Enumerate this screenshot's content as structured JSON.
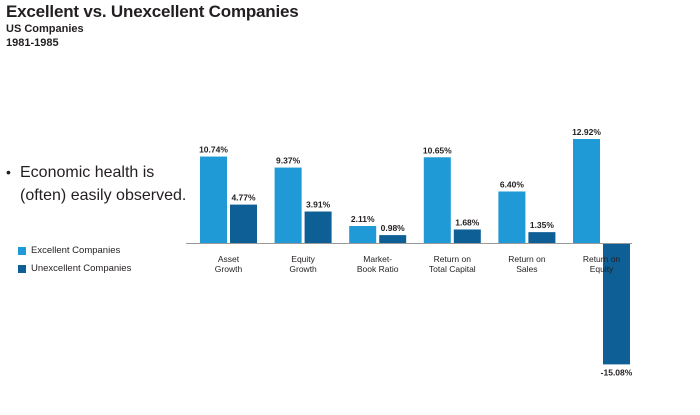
{
  "title": "Excellent vs. Unexcellent Companies",
  "subtitle": "US Companies",
  "period": "1981-1985",
  "bullet": {
    "symbol": "•",
    "text": "Economic health is (often) easily observed."
  },
  "legend": [
    {
      "label": "Excellent Companies",
      "color": "#1f9ad6"
    },
    {
      "label": "Unexcellent Companies",
      "color": "#0e5f96"
    }
  ],
  "chart_data": {
    "type": "bar",
    "title": "",
    "xlabel": "",
    "ylabel": "",
    "categories": [
      [
        "Asset",
        "Growth"
      ],
      [
        "Equity",
        "Growth"
      ],
      [
        "Market-",
        "Book Ratio"
      ],
      [
        "Return on",
        "Total Capital"
      ],
      [
        "Return on",
        "Sales"
      ],
      [
        "Return on",
        "Equity"
      ]
    ],
    "series": [
      {
        "name": "Excellent Companies",
        "color": "#1f9ad6",
        "values": [
          10.74,
          9.37,
          2.11,
          10.65,
          6.4,
          12.92
        ],
        "labels": [
          "10.74%",
          "9.37%",
          "2.11%",
          "10.65%",
          "6.40%",
          "12.92%"
        ]
      },
      {
        "name": "Unexcellent Companies",
        "color": "#0e5f96",
        "values": [
          4.77,
          3.91,
          0.98,
          1.68,
          1.35,
          -15.08
        ],
        "labels": [
          "4.77%",
          "3.91%",
          "0.98%",
          "1.68%",
          "1.35%",
          "-15.08%"
        ]
      }
    ],
    "ylim": [
      -15.08,
      12.92
    ],
    "grid": false,
    "legend_position": "left"
  }
}
